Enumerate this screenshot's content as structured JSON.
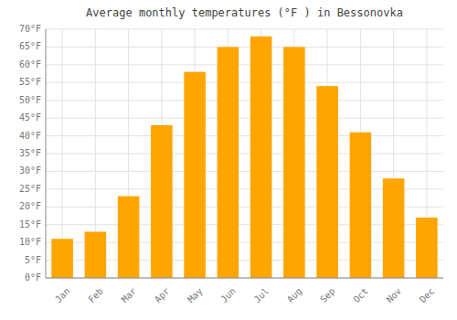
{
  "chart_data": {
    "type": "bar",
    "title": "Average monthly temperatures (°F ) in Bessonovka",
    "categories": [
      "Jan",
      "Feb",
      "Mar",
      "Apr",
      "May",
      "Jun",
      "Jul",
      "Aug",
      "Sep",
      "Oct",
      "Nov",
      "Dec"
    ],
    "values": [
      11,
      13,
      23,
      43,
      58,
      65,
      68,
      65,
      54,
      41,
      28,
      17
    ],
    "color": "#FFA500",
    "ylim": [
      0,
      70
    ],
    "yticks": [
      {
        "value": 0,
        "label": "0°F"
      },
      {
        "value": 5,
        "label": "5°F"
      },
      {
        "value": 10,
        "label": "10°F"
      },
      {
        "value": 15,
        "label": "15°F"
      },
      {
        "value": 20,
        "label": "20°F"
      },
      {
        "value": 25,
        "label": "25°F"
      },
      {
        "value": 30,
        "label": "30°F"
      },
      {
        "value": 35,
        "label": "35°F"
      },
      {
        "value": 40,
        "label": "40°F"
      },
      {
        "value": 45,
        "label": "45°F"
      },
      {
        "value": 50,
        "label": "50°F"
      },
      {
        "value": 55,
        "label": "55°F"
      },
      {
        "value": 60,
        "label": "60°F"
      },
      {
        "value": 65,
        "label": "65°F"
      },
      {
        "value": 70,
        "label": "70°F"
      }
    ],
    "grid": true
  }
}
